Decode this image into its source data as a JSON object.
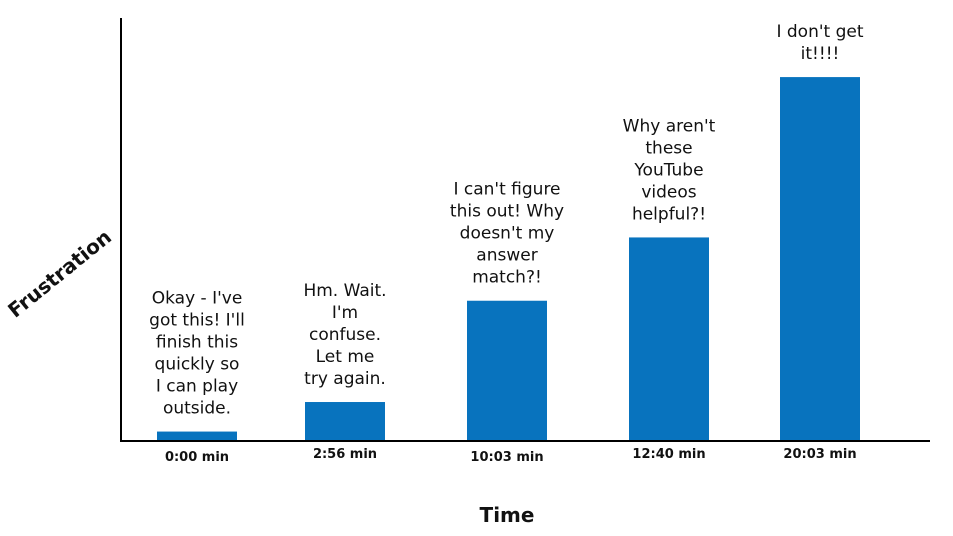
{
  "chart_data": {
    "type": "bar",
    "xlabel": "Time",
    "ylabel": "Frustration",
    "categories": [
      "0:00 min",
      "2:56 min",
      "10:03 min",
      "12:40 min",
      "20:03 min"
    ],
    "values": [
      2,
      9,
      33,
      48,
      86
    ],
    "ylim": [
      0,
      100
    ],
    "grid": false,
    "legend": "none",
    "bar_color": "#0873BE",
    "annotations": [
      [
        "Okay - I've",
        "got this! I'll",
        "finish this",
        "quickly so",
        "I can play",
        "outside."
      ],
      [
        "Hm. Wait.",
        "I'm",
        "confuse.",
        "Let me",
        "try again."
      ],
      [
        "I can't figure",
        "this out! Why",
        "doesn't my",
        "answer",
        "match?!"
      ],
      [
        "Why aren't",
        "these",
        "YouTube",
        "videos",
        "helpful?!"
      ],
      [
        "I don't get",
        "it!!!!"
      ]
    ]
  }
}
